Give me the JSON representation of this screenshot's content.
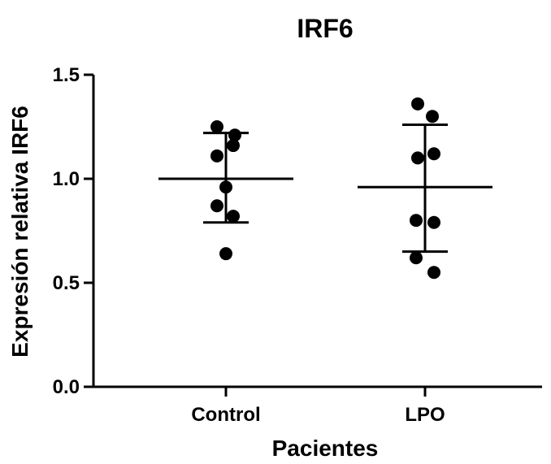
{
  "chart_data": {
    "type": "scatter",
    "title": "IRF6",
    "xlabel": "Pacientes",
    "ylabel": "Expresión relativa IRF6",
    "ylim": [
      0.0,
      1.5
    ],
    "yticks": [
      "0.0",
      "0.5",
      "1.0",
      "1.5"
    ],
    "categories": [
      "Control",
      "LPO"
    ],
    "grid": false,
    "legend": "none",
    "point_color": "#000000",
    "groups": [
      {
        "category": "Control",
        "points": [
          1.25,
          1.21,
          1.16,
          1.11,
          0.96,
          0.87,
          0.82,
          0.64
        ],
        "mean": 1.0,
        "sd_upper": 1.22,
        "sd_lower": 0.79
      },
      {
        "category": "LPO",
        "points": [
          1.36,
          1.3,
          1.12,
          1.1,
          0.8,
          0.79,
          0.62,
          0.55
        ],
        "mean": 0.96,
        "sd_upper": 1.26,
        "sd_lower": 0.65
      }
    ]
  }
}
